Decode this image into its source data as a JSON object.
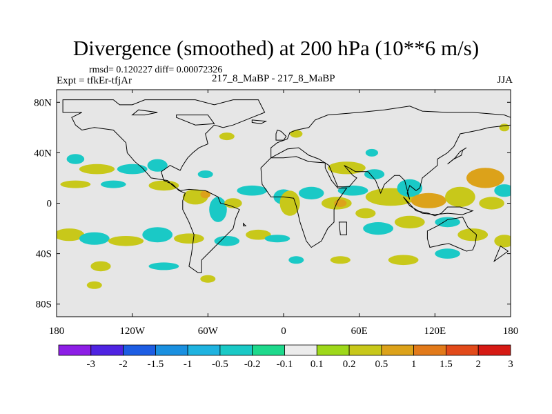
{
  "header": {
    "title": "Divergence (smoothed) at 200 hPa (10**6 m/s)",
    "stats": "rmsd= 0.120227 diff= 0.00072326",
    "expt": "Expt = tfkEr-tfjAr",
    "center_label": "217_8_MaBP - 217_8_MaBP",
    "season": "JJA"
  },
  "chart_data": {
    "type": "heatmap",
    "title": "Divergence (smoothed) at 200 hPa (10**6 m/s)",
    "x_ticks": [
      {
        "value": -180,
        "label": "180"
      },
      {
        "value": -120,
        "label": "120W"
      },
      {
        "value": -60,
        "label": "60W"
      },
      {
        "value": 0,
        "label": "0"
      },
      {
        "value": 60,
        "label": "60E"
      },
      {
        "value": 120,
        "label": "120E"
      },
      {
        "value": 180,
        "label": "180"
      }
    ],
    "y_ticks": [
      {
        "value": 80,
        "label": "80N"
      },
      {
        "value": 40,
        "label": "40N"
      },
      {
        "value": 0,
        "label": "0"
      },
      {
        "value": -40,
        "label": "40S"
      },
      {
        "value": -80,
        "label": "80S"
      }
    ],
    "xlim": [
      -180,
      180
    ],
    "ylim": [
      -90,
      90
    ],
    "colorbar": {
      "labels": [
        "-3",
        "-2",
        "-1.5",
        "-1",
        "-0.5",
        "-0.2",
        "-0.1",
        "0.1",
        "0.2",
        "0.5",
        "1",
        "1.5",
        "2",
        "3"
      ],
      "colors": [
        "#8d1ee6",
        "#4f23e2",
        "#1d5de3",
        "#1a90e0",
        "#1fb3e0",
        "#1ac9c6",
        "#1ed98c",
        "#ececec",
        "#9ed81a",
        "#c8c81a",
        "#dca21a",
        "#e27a1a",
        "#e24a1a",
        "#d61a14"
      ]
    },
    "field_background": "#e6e6e6",
    "features": [
      {
        "lon": -165,
        "lat": 35,
        "rx": 7,
        "ry": 4,
        "level": 5
      },
      {
        "lon": -148,
        "lat": 27,
        "rx": 14,
        "ry": 4,
        "level": 9
      },
      {
        "lon": -120,
        "lat": 27,
        "rx": 12,
        "ry": 4,
        "level": 5
      },
      {
        "lon": -100,
        "lat": 30,
        "rx": 8,
        "ry": 5,
        "level": 5
      },
      {
        "lon": -165,
        "lat": 15,
        "rx": 12,
        "ry": 3,
        "level": 9
      },
      {
        "lon": -135,
        "lat": 15,
        "rx": 10,
        "ry": 3,
        "level": 5
      },
      {
        "lon": -95,
        "lat": 14,
        "rx": 12,
        "ry": 4,
        "level": 9
      },
      {
        "lon": -62,
        "lat": 23,
        "rx": 6,
        "ry": 3,
        "level": 5
      },
      {
        "lon": -70,
        "lat": 5,
        "rx": 10,
        "ry": 6,
        "level": 9
      },
      {
        "lon": -62,
        "lat": 7,
        "rx": 4,
        "ry": 3,
        "level": 10
      },
      {
        "lon": -52,
        "lat": -5,
        "rx": 7,
        "ry": 10,
        "level": 5
      },
      {
        "lon": -40,
        "lat": 0,
        "rx": 7,
        "ry": 4,
        "level": 9
      },
      {
        "lon": -25,
        "lat": 10,
        "rx": 12,
        "ry": 4,
        "level": 5
      },
      {
        "lon": 0,
        "lat": 5,
        "rx": 8,
        "ry": 6,
        "level": 5
      },
      {
        "lon": 5,
        "lat": 0,
        "rx": 8,
        "ry": 10,
        "level": 9
      },
      {
        "lon": 22,
        "lat": 8,
        "rx": 10,
        "ry": 5,
        "level": 5
      },
      {
        "lon": 42,
        "lat": 0,
        "rx": 12,
        "ry": 5,
        "level": 9
      },
      {
        "lon": 45,
        "lat": 0,
        "rx": 5,
        "ry": 3,
        "level": 10
      },
      {
        "lon": 55,
        "lat": 10,
        "rx": 12,
        "ry": 4,
        "level": 5
      },
      {
        "lon": 50,
        "lat": 28,
        "rx": 15,
        "ry": 5,
        "level": 9
      },
      {
        "lon": 72,
        "lat": 23,
        "rx": 8,
        "ry": 4,
        "level": 5
      },
      {
        "lon": 85,
        "lat": 5,
        "rx": 20,
        "ry": 7,
        "level": 9
      },
      {
        "lon": 100,
        "lat": 12,
        "rx": 10,
        "ry": 7,
        "level": 5
      },
      {
        "lon": 115,
        "lat": 2,
        "rx": 14,
        "ry": 6,
        "level": 10
      },
      {
        "lon": 140,
        "lat": 5,
        "rx": 12,
        "ry": 8,
        "level": 9
      },
      {
        "lon": 160,
        "lat": 20,
        "rx": 15,
        "ry": 8,
        "level": 10
      },
      {
        "lon": 165,
        "lat": 0,
        "rx": 10,
        "ry": 5,
        "level": 9
      },
      {
        "lon": 175,
        "lat": 10,
        "rx": 8,
        "ry": 5,
        "level": 5
      },
      {
        "lon": 65,
        "lat": -8,
        "rx": 8,
        "ry": 4,
        "level": 9
      },
      {
        "lon": 75,
        "lat": -20,
        "rx": 12,
        "ry": 5,
        "level": 5
      },
      {
        "lon": 100,
        "lat": -15,
        "rx": 12,
        "ry": 5,
        "level": 9
      },
      {
        "lon": 130,
        "lat": -15,
        "rx": 10,
        "ry": 4,
        "level": 5
      },
      {
        "lon": 150,
        "lat": -25,
        "rx": 12,
        "ry": 5,
        "level": 9
      },
      {
        "lon": 175,
        "lat": -30,
        "rx": 8,
        "ry": 5,
        "level": 9
      },
      {
        "lon": -170,
        "lat": -25,
        "rx": 12,
        "ry": 5,
        "level": 9
      },
      {
        "lon": -150,
        "lat": -28,
        "rx": 12,
        "ry": 5,
        "level": 5
      },
      {
        "lon": -125,
        "lat": -30,
        "rx": 14,
        "ry": 4,
        "level": 9
      },
      {
        "lon": -100,
        "lat": -25,
        "rx": 12,
        "ry": 6,
        "level": 5
      },
      {
        "lon": -75,
        "lat": -28,
        "rx": 12,
        "ry": 4,
        "level": 9
      },
      {
        "lon": -45,
        "lat": -30,
        "rx": 10,
        "ry": 4,
        "level": 5
      },
      {
        "lon": -20,
        "lat": -25,
        "rx": 10,
        "ry": 4,
        "level": 9
      },
      {
        "lon": -5,
        "lat": -28,
        "rx": 10,
        "ry": 3,
        "level": 5
      },
      {
        "lon": 10,
        "lat": -45,
        "rx": 6,
        "ry": 3,
        "level": 5
      },
      {
        "lon": 45,
        "lat": -45,
        "rx": 8,
        "ry": 3,
        "level": 9
      },
      {
        "lon": 95,
        "lat": -45,
        "rx": 12,
        "ry": 4,
        "level": 9
      },
      {
        "lon": 130,
        "lat": -40,
        "rx": 10,
        "ry": 4,
        "level": 5
      },
      {
        "lon": -145,
        "lat": -50,
        "rx": 8,
        "ry": 4,
        "level": 9
      },
      {
        "lon": -95,
        "lat": -50,
        "rx": 12,
        "ry": 3,
        "level": 5
      },
      {
        "lon": -60,
        "lat": -60,
        "rx": 6,
        "ry": 3,
        "level": 9
      },
      {
        "lon": -150,
        "lat": -65,
        "rx": 6,
        "ry": 3,
        "level": 9
      },
      {
        "lon": -45,
        "lat": 53,
        "rx": 6,
        "ry": 3,
        "level": 9
      },
      {
        "lon": 10,
        "lat": 55,
        "rx": 5,
        "ry": 3,
        "level": 9
      },
      {
        "lon": 70,
        "lat": 40,
        "rx": 5,
        "ry": 3,
        "level": 5
      },
      {
        "lon": 175,
        "lat": 60,
        "rx": 4,
        "ry": 3,
        "level": 9
      }
    ],
    "continents": [
      [
        [
          -175,
          82
        ],
        [
          -135,
          82
        ],
        [
          -130,
          78
        ],
        [
          -120,
          78
        ],
        [
          -110,
          82
        ],
        [
          -70,
          82
        ],
        [
          -55,
          78
        ],
        [
          -40,
          82
        ],
        [
          -20,
          82
        ],
        [
          -15,
          72
        ],
        [
          -25,
          68
        ],
        [
          -40,
          62
        ],
        [
          -48,
          60
        ],
        [
          -55,
          62
        ],
        [
          -62,
          55
        ],
        [
          -60,
          47
        ],
        [
          -67,
          44
        ],
        [
          -72,
          40
        ],
        [
          -76,
          36
        ],
        [
          -80,
          30
        ],
        [
          -82,
          26
        ],
        [
          -90,
          30
        ],
        [
          -97,
          25
        ],
        [
          -95,
          18
        ],
        [
          -88,
          15
        ],
        [
          -83,
          10
        ],
        [
          -78,
          8
        ],
        [
          -80,
          2
        ],
        [
          -80,
          -5
        ],
        [
          -75,
          -15
        ],
        [
          -71,
          -25
        ],
        [
          -73,
          -40
        ],
        [
          -75,
          -50
        ],
        [
          -68,
          -55
        ],
        [
          -65,
          -55
        ],
        [
          -65,
          -45
        ],
        [
          -58,
          -38
        ],
        [
          -48,
          -28
        ],
        [
          -40,
          -20
        ],
        [
          -38,
          -12
        ],
        [
          -35,
          -5
        ],
        [
          -42,
          -2
        ],
        [
          -50,
          0
        ],
        [
          -52,
          5
        ],
        [
          -62,
          10
        ],
        [
          -75,
          11
        ],
        [
          -82,
          10
        ],
        [
          -88,
          14
        ],
        [
          -92,
          18
        ],
        [
          -105,
          20
        ],
        [
          -112,
          28
        ],
        [
          -118,
          33
        ],
        [
          -124,
          40
        ],
        [
          -125,
          48
        ],
        [
          -135,
          58
        ],
        [
          -150,
          60
        ],
        [
          -160,
          58
        ],
        [
          -165,
          62
        ],
        [
          -168,
          68
        ],
        [
          -160,
          72
        ],
        [
          -175,
          72
        ],
        [
          -175,
          82
        ]
      ],
      [
        [
          -10,
          36
        ],
        [
          -18,
          28
        ],
        [
          -17,
          15
        ],
        [
          -10,
          5
        ],
        [
          0,
          5
        ],
        [
          8,
          4
        ],
        [
          10,
          -2
        ],
        [
          13,
          -15
        ],
        [
          18,
          -30
        ],
        [
          22,
          -35
        ],
        [
          30,
          -30
        ],
        [
          35,
          -20
        ],
        [
          40,
          -15
        ],
        [
          40,
          -5
        ],
        [
          43,
          2
        ],
        [
          50,
          12
        ],
        [
          43,
          12
        ],
        [
          38,
          18
        ],
        [
          33,
          28
        ],
        [
          33,
          32
        ],
        [
          20,
          33
        ],
        [
          10,
          37
        ],
        [
          0,
          36
        ],
        [
          -10,
          36
        ]
      ],
      [
        [
          -10,
          36
        ],
        [
          -10,
          44
        ],
        [
          -5,
          48
        ],
        [
          3,
          51
        ],
        [
          5,
          56
        ],
        [
          10,
          58
        ],
        [
          20,
          60
        ],
        [
          25,
          66
        ],
        [
          35,
          70
        ],
        [
          60,
          72
        ],
        [
          80,
          74
        ],
        [
          100,
          77
        ],
        [
          110,
          73
        ],
        [
          130,
          72
        ],
        [
          150,
          72
        ],
        [
          175,
          70
        ],
        [
          180,
          68
        ],
        [
          180,
          62
        ],
        [
          163,
          60
        ],
        [
          155,
          58
        ],
        [
          140,
          55
        ],
        [
          135,
          45
        ],
        [
          130,
          40
        ],
        [
          122,
          35
        ],
        [
          122,
          30
        ],
        [
          110,
          20
        ],
        [
          108,
          12
        ],
        [
          105,
          10
        ],
        [
          100,
          14
        ],
        [
          98,
          8
        ],
        [
          100,
          3
        ],
        [
          96,
          18
        ],
        [
          92,
          22
        ],
        [
          88,
          22
        ],
        [
          80,
          15
        ],
        [
          77,
          8
        ],
        [
          73,
          18
        ],
        [
          67,
          25
        ],
        [
          57,
          25
        ],
        [
          52,
          28
        ],
        [
          48,
          30
        ],
        [
          55,
          22
        ],
        [
          58,
          20
        ],
        [
          52,
          13
        ],
        [
          43,
          13
        ],
        [
          36,
          30
        ],
        [
          28,
          35
        ],
        [
          20,
          38
        ],
        [
          12,
          44
        ],
        [
          3,
          43
        ],
        [
          -10,
          36
        ]
      ],
      [
        [
          114,
          -22
        ],
        [
          122,
          -18
        ],
        [
          130,
          -13
        ],
        [
          137,
          -12
        ],
        [
          142,
          -11
        ],
        [
          146,
          -19
        ],
        [
          153,
          -25
        ],
        [
          152,
          -32
        ],
        [
          150,
          -37
        ],
        [
          145,
          -38
        ],
        [
          138,
          -35
        ],
        [
          131,
          -32
        ],
        [
          125,
          -33
        ],
        [
          116,
          -35
        ],
        [
          114,
          -28
        ],
        [
          114,
          -22
        ]
      ],
      [
        [
          95,
          5
        ],
        [
          105,
          -6
        ],
        [
          115,
          -8
        ],
        [
          120,
          -10
        ],
        [
          125,
          -8
        ],
        [
          130,
          -3
        ],
        [
          140,
          -3
        ],
        [
          150,
          -6
        ],
        [
          142,
          -9
        ],
        [
          130,
          -8
        ],
        [
          120,
          -9
        ],
        [
          110,
          -8
        ],
        [
          100,
          -2
        ],
        [
          95,
          5
        ]
      ],
      [
        [
          130,
          31
        ],
        [
          135,
          35
        ],
        [
          141,
          38
        ],
        [
          142,
          42
        ],
        [
          145,
          44
        ],
        [
          140,
          41
        ],
        [
          136,
          36
        ],
        [
          130,
          31
        ]
      ],
      [
        [
          -85,
          70
        ],
        [
          -60,
          70
        ],
        [
          -55,
          63
        ],
        [
          -70,
          62
        ],
        [
          -85,
          68
        ],
        [
          -85,
          70
        ]
      ],
      [
        [
          -6,
          50
        ],
        [
          0,
          50
        ],
        [
          2,
          53
        ],
        [
          -2,
          57
        ],
        [
          -5,
          58
        ],
        [
          -6,
          55
        ],
        [
          -6,
          50
        ]
      ],
      [
        [
          -25,
          66
        ],
        [
          -14,
          65
        ],
        [
          -18,
          63
        ],
        [
          -25,
          64
        ],
        [
          -25,
          66
        ]
      ],
      [
        [
          44,
          -15
        ],
        [
          50,
          -15
        ],
        [
          50,
          -25
        ],
        [
          45,
          -25
        ],
        [
          44,
          -15
        ]
      ],
      [
        [
          167,
          -46
        ],
        [
          174,
          -41
        ],
        [
          178,
          -38
        ],
        [
          172,
          -34
        ],
        [
          167,
          -46
        ]
      ],
      [
        [
          -120,
          70
        ],
        [
          -110,
          70
        ],
        [
          -100,
          72
        ],
        [
          -115,
          74
        ],
        [
          -120,
          70
        ]
      ],
      [
        [
          -32,
          -16
        ],
        [
          -30,
          -18
        ],
        [
          -32,
          -18
        ],
        [
          -32,
          -16
        ]
      ]
    ]
  }
}
